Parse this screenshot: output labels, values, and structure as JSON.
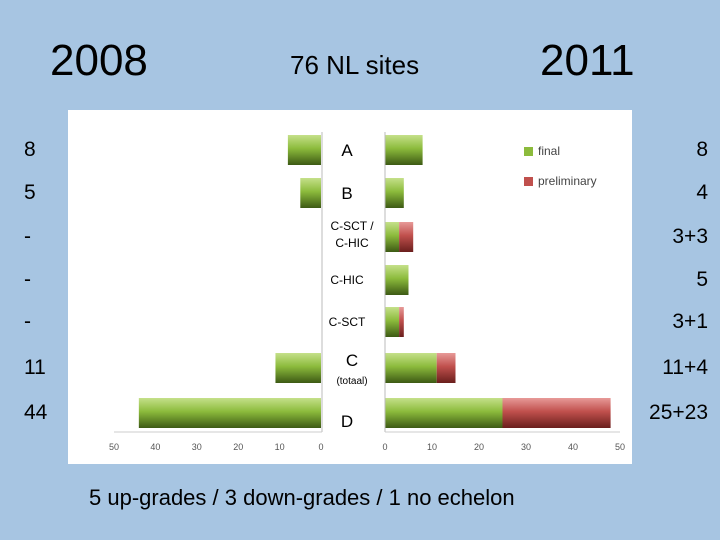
{
  "header": {
    "year_left": "2008",
    "subtitle": "76 NL sites",
    "year_right": "2011"
  },
  "left_counts": [
    "8",
    "5",
    "-",
    "-",
    "-",
    "11",
    "44"
  ],
  "right_counts": [
    "8",
    "4",
    "3+3",
    "5",
    "3+1",
    "11+4",
    "25+23"
  ],
  "footer": "5 up-grades  /  3 down-grades  /  1 no echelon",
  "colors": {
    "final": "#8cbb3c",
    "preliminary": "#c0504d"
  },
  "chart_data": {
    "type": "bar",
    "orientation": "horizontal",
    "stacked": true,
    "categories": [
      "A",
      "B",
      "C-SCT / C-HIC",
      "C-HIC",
      "C-SCT",
      "C (totaal)",
      "D"
    ],
    "category_lines": [
      [
        "A"
      ],
      [
        "B"
      ],
      [
        "C-SCT /",
        "C-HIC"
      ],
      [
        "C-HIC"
      ],
      [
        "C-SCT"
      ],
      [
        "C",
        "(totaal)"
      ],
      [
        "D"
      ]
    ],
    "legend": [
      {
        "name": "final",
        "color": "#8cbb3c"
      },
      {
        "name": "preliminary",
        "color": "#c0504d"
      }
    ],
    "left_panel": {
      "year": "2008",
      "series": [
        {
          "name": "final",
          "values": [
            8,
            5,
            0,
            0,
            0,
            11,
            44
          ]
        }
      ],
      "xlim": [
        50,
        0
      ],
      "ticks": [
        "50",
        "40",
        "30",
        "20",
        "10",
        "0"
      ]
    },
    "right_panel": {
      "year": "2011",
      "series": [
        {
          "name": "final",
          "values": [
            8,
            4,
            3,
            5,
            3,
            11,
            25
          ]
        },
        {
          "name": "preliminary",
          "values": [
            0,
            0,
            3,
            0,
            1,
            4,
            23
          ]
        }
      ],
      "xlim": [
        0,
        50
      ],
      "ticks": [
        "0",
        "10",
        "20",
        "30",
        "40",
        "50"
      ]
    },
    "legend_position": "top-right"
  }
}
